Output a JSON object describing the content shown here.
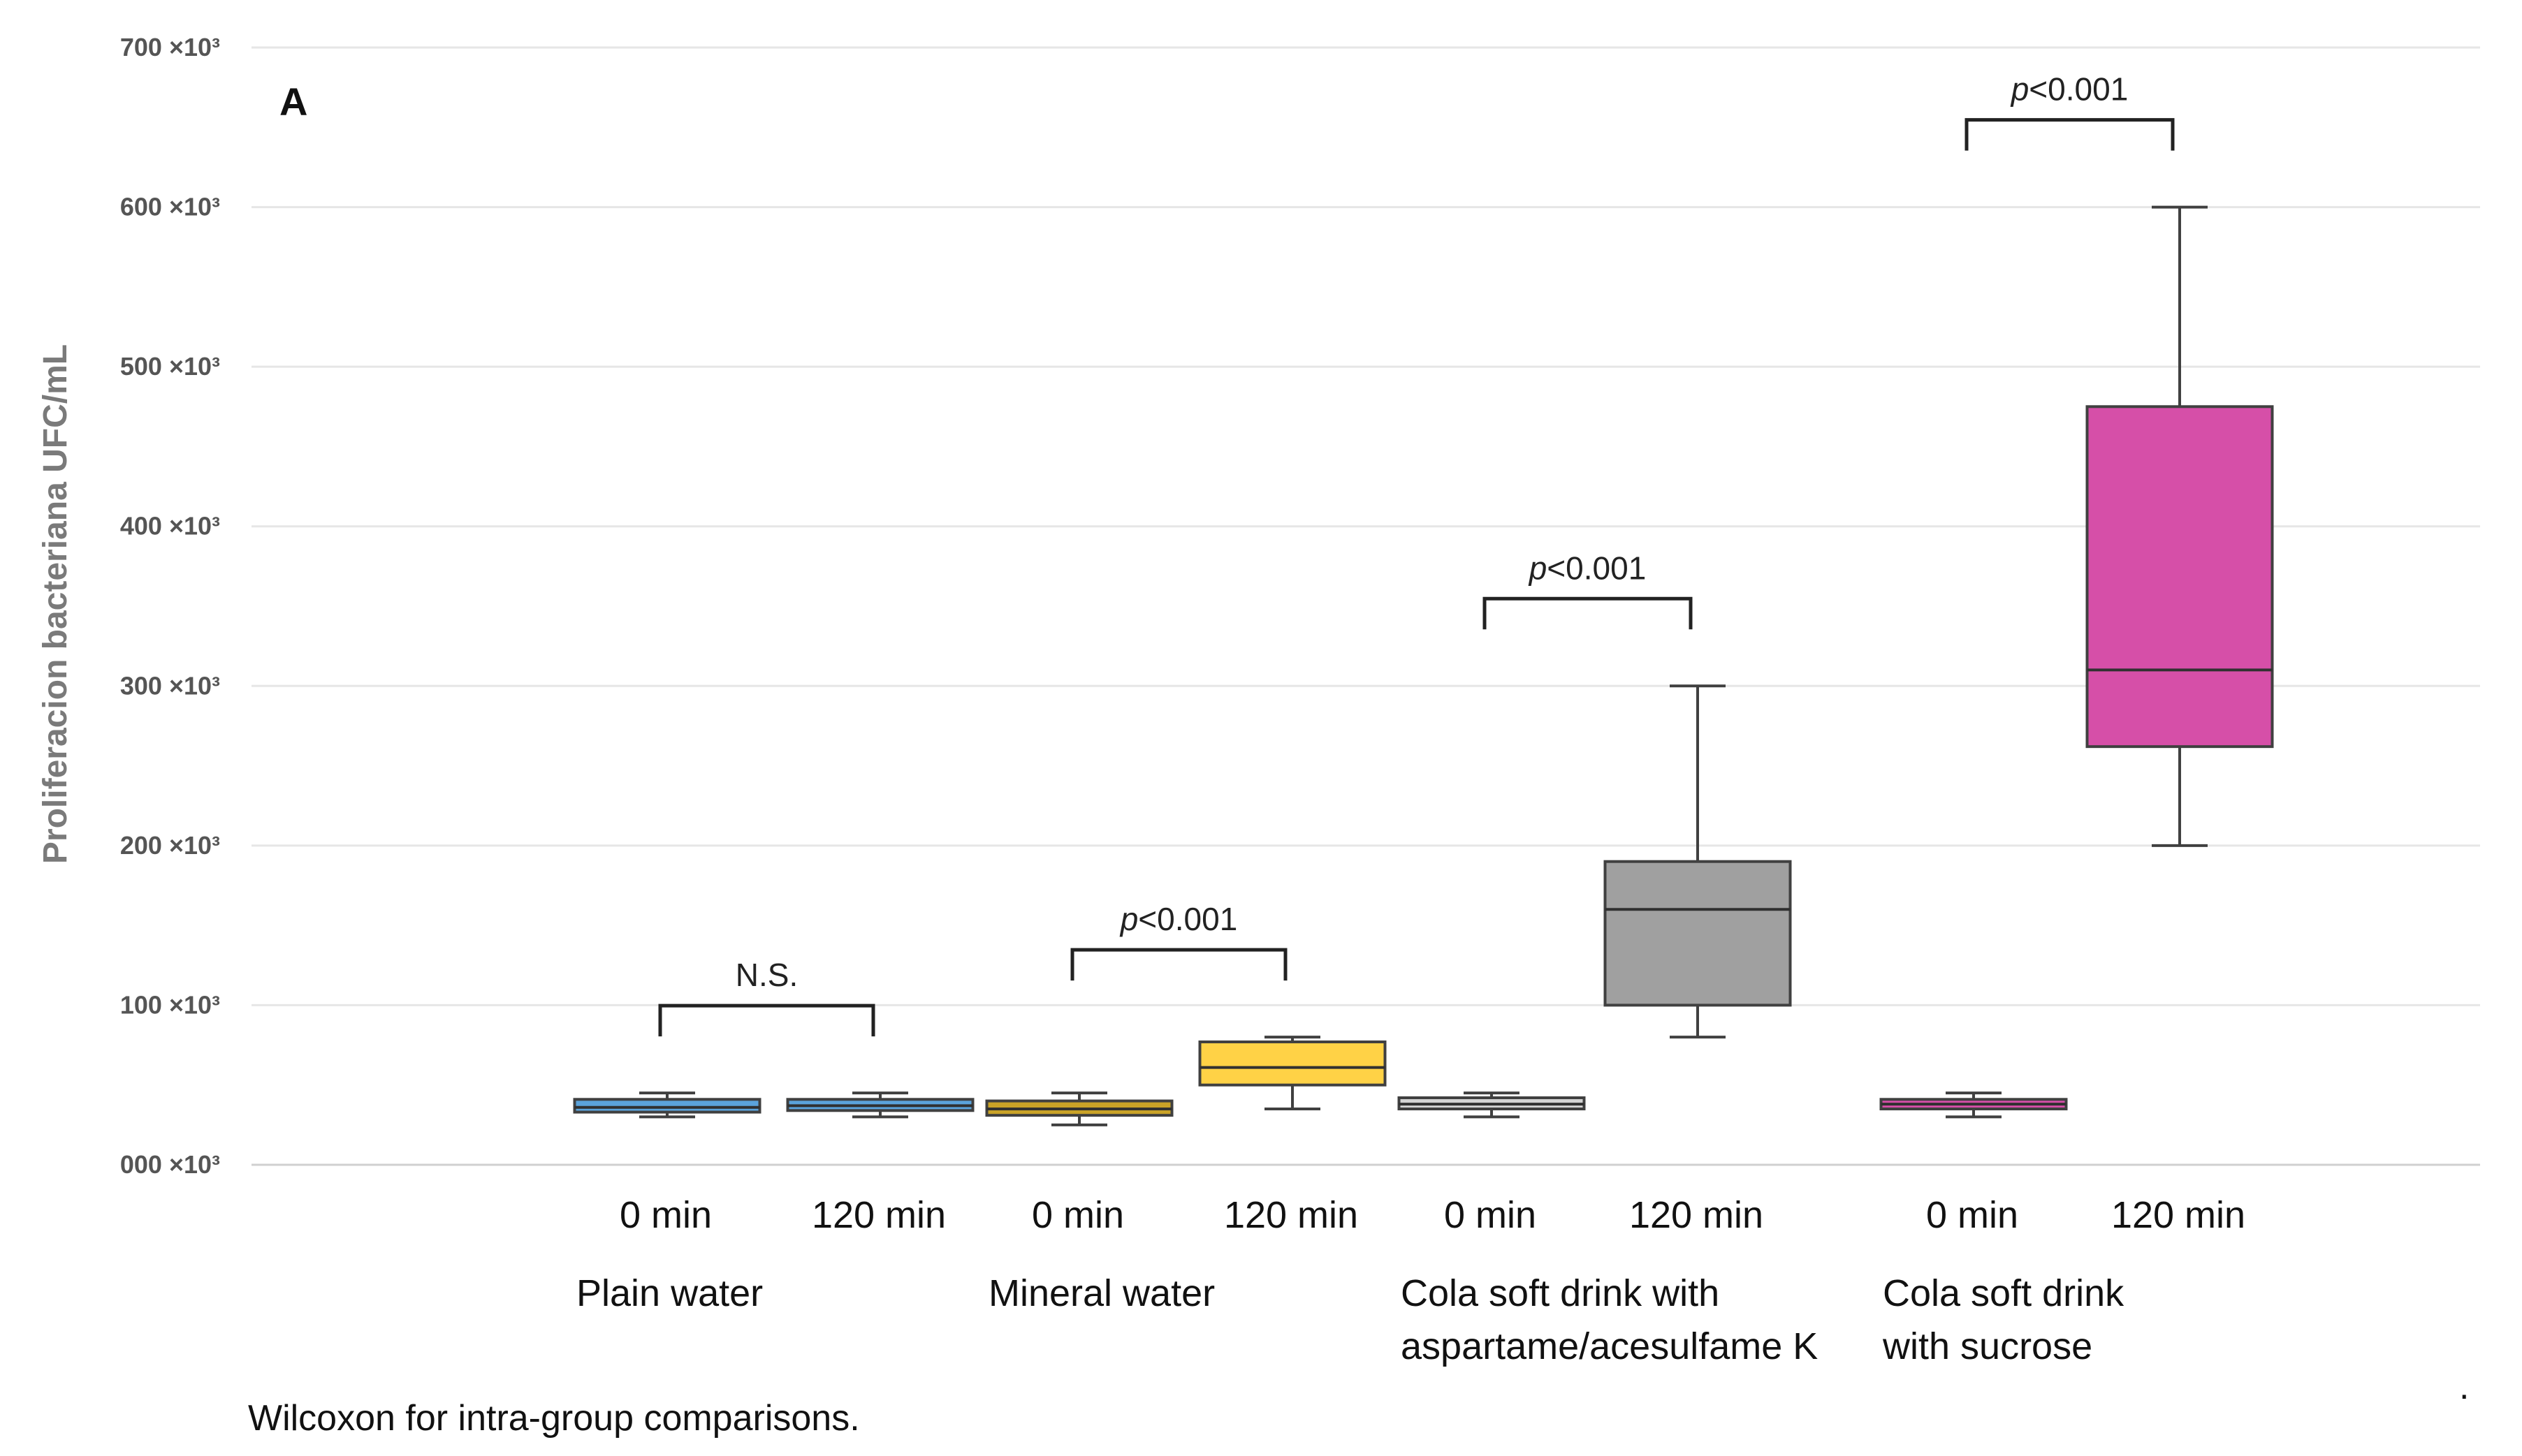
{
  "chart_data": {
    "type": "box",
    "panel_label": "A",
    "ylabel": "Proliferacion bacteriana UFC/mL",
    "ylim": [
      0,
      700000
    ],
    "grid": true,
    "y_ticks": [
      {
        "value": 0,
        "label": "000 ×10³"
      },
      {
        "value": 100000,
        "label": "100 ×10³"
      },
      {
        "value": 200000,
        "label": "200 ×10³"
      },
      {
        "value": 300000,
        "label": "300 ×10³"
      },
      {
        "value": 400000,
        "label": "400 ×10³"
      },
      {
        "value": 500000,
        "label": "500 ×10³"
      },
      {
        "value": 600000,
        "label": "600 ×10³"
      },
      {
        "value": 700000,
        "label": "700 ×10³"
      }
    ],
    "groups": [
      {
        "name_lines": [
          "Plain water"
        ],
        "comparison": {
          "text": "N.S.",
          "italic_p": false
        },
        "boxes": [
          {
            "label": "0 min",
            "min": 30000,
            "q1": 33000,
            "median": 36000,
            "q3": 41000,
            "max": 45000,
            "color": "#5BA3DB"
          },
          {
            "label": "120 min",
            "min": 30000,
            "q1": 34000,
            "median": 37000,
            "q3": 41000,
            "max": 45000,
            "color": "#5BA3DB"
          }
        ]
      },
      {
        "name_lines": [
          "Mineral water"
        ],
        "comparison": {
          "text": "p<0.001",
          "italic_p": true
        },
        "boxes": [
          {
            "label": "0 min",
            "min": 25000,
            "q1": 31000,
            "median": 35000,
            "q3": 40000,
            "max": 45000,
            "color": "#C9A227"
          },
          {
            "label": "120 min",
            "min": 35000,
            "q1": 50000,
            "median": 61000,
            "q3": 77000,
            "max": 80000,
            "color": "#FFD246"
          }
        ]
      },
      {
        "name_lines": [
          "Cola soft drink with",
          "aspartame/acesulfame K"
        ],
        "comparison": {
          "text": "p<0.001",
          "italic_p": true
        },
        "boxes": [
          {
            "label": "0 min",
            "min": 30000,
            "q1": 35000,
            "median": 38000,
            "q3": 42000,
            "max": 45000,
            "color": "#D3D3D3"
          },
          {
            "label": "120 min",
            "min": 80000,
            "q1": 100000,
            "median": 160000,
            "q3": 190000,
            "max": 300000,
            "color": "#A0A0A0"
          }
        ]
      },
      {
        "name_lines": [
          "Cola soft drink",
          "with sucrose"
        ],
        "comparison": {
          "text": "p<0.001",
          "italic_p": true
        },
        "boxes": [
          {
            "label": "0 min",
            "min": 30000,
            "q1": 35000,
            "median": 38000,
            "q3": 41000,
            "max": 45000,
            "color": "#D64FA8"
          },
          {
            "label": "120 min",
            "min": 200000,
            "q1": 262000,
            "median": 310000,
            "q3": 475000,
            "max": 600000,
            "color": "#D64FA8"
          }
        ]
      }
    ]
  },
  "footnote": "Wilcoxon for intra-group comparisons.",
  "corner_mark": "."
}
